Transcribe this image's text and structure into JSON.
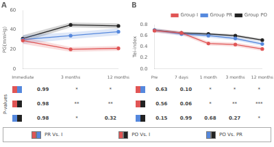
{
  "chart_data": [
    {
      "type": "line",
      "title": "A",
      "ylabel": "PG(mmHg)",
      "categories": [
        "Immediate",
        "3 months",
        "12 months"
      ],
      "ylim": [
        0,
        60
      ],
      "yticks": [
        0,
        20,
        40,
        60
      ],
      "grid": false,
      "marker": "circle",
      "series": [
        {
          "color": "#e05555",
          "values": [
            29,
            20,
            21
          ],
          "band_low": [
            25.5,
            17.5,
            18.5
          ],
          "band_high": [
            32.5,
            22.5,
            23.5
          ]
        },
        {
          "color": "#5588dd",
          "values": [
            30,
            34,
            38
          ],
          "band_low": [
            25.5,
            30.5,
            34.5
          ],
          "band_high": [
            34.5,
            37.5,
            41.5
          ]
        },
        {
          "color": "#222222",
          "values": [
            31,
            45,
            44
          ],
          "band_low": [
            27.5,
            42.5,
            41.5
          ],
          "band_high": [
            34.5,
            47.5,
            46.5
          ]
        }
      ],
      "pvalues": {
        "label": "P-values",
        "rows": [
          {
            "colors": [
              "#e05555",
              "#5588dd"
            ],
            "labels": [
              "0.99",
              "*",
              "*"
            ]
          },
          {
            "colors": [
              "#e05555",
              "#222222"
            ],
            "labels": [
              "0.98",
              "**",
              "**"
            ]
          },
          {
            "colors": [
              "#5588dd",
              "#222222"
            ],
            "labels": [
              "0.98",
              "*",
              "0.32"
            ]
          }
        ]
      }
    },
    {
      "type": "line",
      "title": "B",
      "ylabel": "Tei-index",
      "categories": [
        "Pre",
        "7 days",
        "1 month",
        "3 months",
        "12 months"
      ],
      "ylim": [
        0,
        0.8
      ],
      "yticks": [
        {
          "value": 0,
          "label": "0.0"
        },
        0.2,
        0.4,
        0.6,
        0.8
      ],
      "grid": false,
      "marker": "circle",
      "legend": "upper right",
      "series": [
        {
          "name": "Group I",
          "color": "#e05555",
          "values": [
            0.69,
            0.65,
            0.46,
            0.44,
            0.36
          ],
          "band_low": [
            0.655,
            0.615,
            0.425,
            0.405,
            0.325
          ],
          "band_high": [
            0.725,
            0.685,
            0.495,
            0.475,
            0.395
          ]
        },
        {
          "name": "Group PR",
          "color": "#5588dd",
          "values": [
            0.7,
            0.63,
            0.6,
            0.55,
            0.45
          ],
          "band_low": [
            0.665,
            0.595,
            0.565,
            0.515,
            0.415
          ],
          "band_high": [
            0.735,
            0.665,
            0.635,
            0.585,
            0.485
          ]
        },
        {
          "name": "Group PO",
          "color": "#222222",
          "values": [
            0.7,
            0.65,
            0.63,
            0.6,
            0.52
          ],
          "band_low": [
            0.675,
            0.625,
            0.605,
            0.575,
            0.495
          ],
          "band_high": [
            0.725,
            0.675,
            0.655,
            0.625,
            0.545
          ]
        }
      ],
      "pvalues": {
        "rows": [
          {
            "colors": [
              "#e05555",
              "#5588dd"
            ],
            "labels": [
              "0.63",
              "0.10",
              "*",
              "*",
              "*"
            ]
          },
          {
            "colors": [
              "#e05555",
              "#222222"
            ],
            "labels": [
              "0.56",
              "0.06",
              "*",
              "**",
              "***"
            ]
          },
          {
            "colors": [
              "#5588dd",
              "#222222"
            ],
            "labels": [
              "0.15",
              "0.99",
              "0.68",
              "0.27",
              "*"
            ]
          }
        ]
      }
    }
  ],
  "comparisons": [
    {
      "name": "PR Vs. I",
      "colors": [
        "#e05555",
        "#5588dd"
      ]
    },
    {
      "name": "PO Vs. I",
      "colors": [
        "#e05555",
        "#222222"
      ]
    },
    {
      "name": "PO Vs. PR",
      "colors": [
        "#5588dd",
        "#222222"
      ]
    }
  ]
}
